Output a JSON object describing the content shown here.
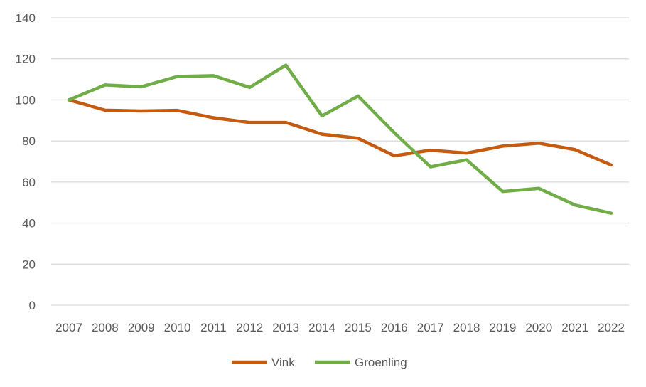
{
  "chart_data": {
    "type": "line",
    "title": "",
    "xlabel": "",
    "ylabel": "",
    "categories": [
      "2007",
      "2008",
      "2009",
      "2010",
      "2011",
      "2012",
      "2013",
      "2014",
      "2015",
      "2016",
      "2017",
      "2018",
      "2019",
      "2020",
      "2021",
      "2022"
    ],
    "ylim": [
      0,
      140
    ],
    "yticks": [
      0,
      20,
      40,
      60,
      80,
      100,
      120,
      140
    ],
    "grid": true,
    "legend_position": "bottom",
    "series": [
      {
        "name": "Vink",
        "color": "#C55A11",
        "values": [
          100,
          95,
          94.6,
          94.9,
          91.3,
          89,
          89,
          83.3,
          81.3,
          72.8,
          75.5,
          74.1,
          77.5,
          78.9,
          75.8,
          68.3
        ]
      },
      {
        "name": "Groenling",
        "color": "#70AD47",
        "values": [
          100,
          107.3,
          106.4,
          111.4,
          111.8,
          106.1,
          116.9,
          92.2,
          101.9,
          84,
          67.4,
          70.8,
          55.4,
          56.9,
          48.8,
          44.8
        ]
      }
    ]
  }
}
